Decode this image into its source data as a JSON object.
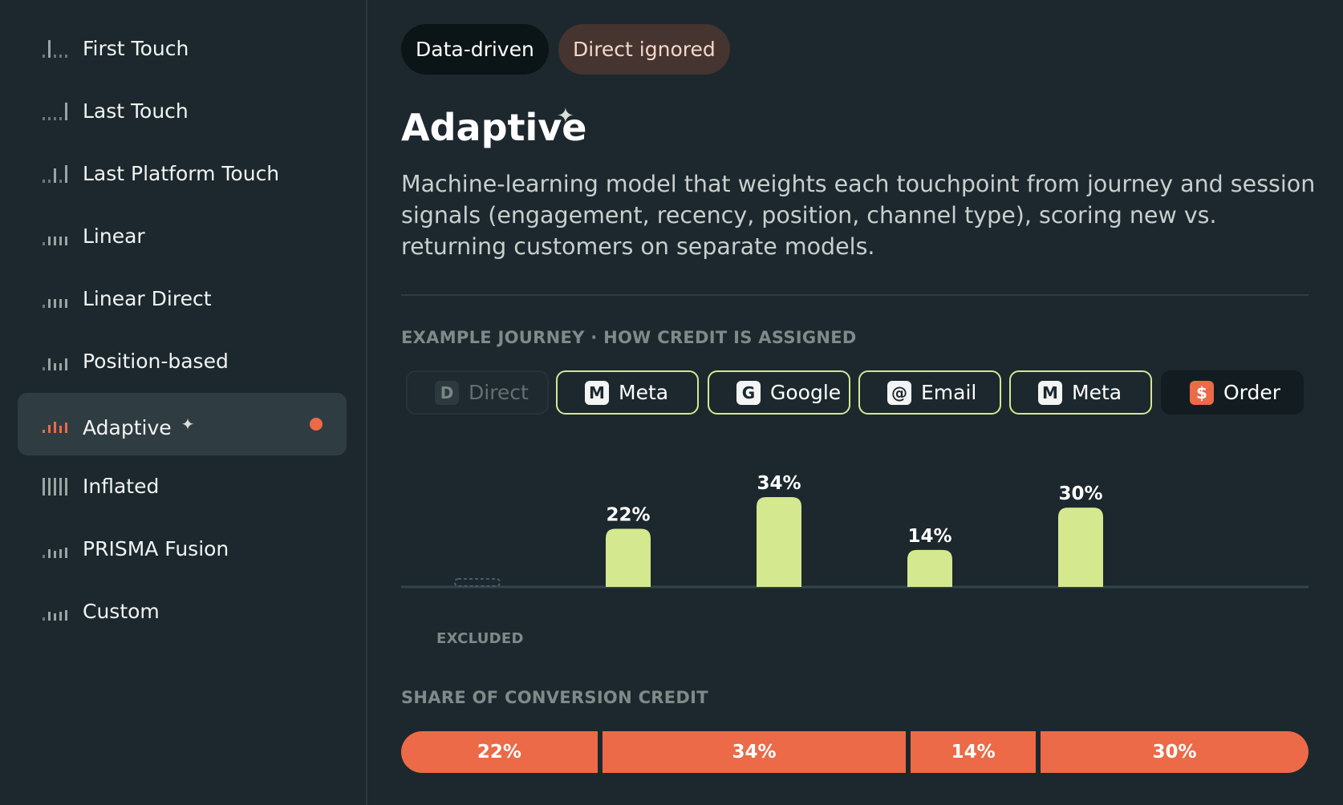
{
  "sidebar": {
    "items": [
      {
        "label": "First Touch",
        "icon": "first-touch-bars-icon"
      },
      {
        "label": "Last Touch",
        "icon": "last-touch-bars-icon"
      },
      {
        "label": "Last Platform Touch",
        "icon": "last-platform-touch-bars-icon"
      },
      {
        "label": "Linear",
        "icon": "linear-bars-icon"
      },
      {
        "label": "Linear Direct",
        "icon": "linear-direct-bars-icon"
      },
      {
        "label": "Position-based",
        "icon": "position-based-bars-icon"
      },
      {
        "label": "Adaptive",
        "icon": "adaptive-bars-icon",
        "active": true
      },
      {
        "label": "Inflated",
        "icon": "inflated-bars-icon"
      },
      {
        "label": "PRISMA Fusion",
        "icon": "prisma-fusion-bars-icon"
      },
      {
        "label": "Custom",
        "icon": "custom-bars-icon"
      }
    ]
  },
  "main": {
    "tags": [
      "Data-driven",
      "Direct ignored"
    ],
    "title": "Adaptive",
    "description": "Machine-learning model that weights each touchpoint from journey and session signals (engagement, recency, position, channel type), scoring new vs. returning customers on separate models.",
    "journey_label": "EXAMPLE JOURNEY · HOW CREDIT IS ASSIGNED",
    "touchpoints": [
      {
        "badge": "D",
        "label": "Direct",
        "kind": "direct"
      },
      {
        "badge": "M",
        "label": "Meta",
        "kind": "channel"
      },
      {
        "badge": "G",
        "label": "Google",
        "kind": "channel"
      },
      {
        "badge": "@",
        "label": "Email",
        "kind": "channel"
      },
      {
        "badge": "M",
        "label": "Meta",
        "kind": "channel"
      },
      {
        "badge": "$",
        "label": "Order",
        "kind": "order"
      }
    ],
    "excluded_label": "EXCLUDED",
    "share_label": "SHARE OF CONVERSION CREDIT",
    "share_segments": [
      "22%",
      "34%",
      "14%",
      "30%"
    ]
  },
  "chart_data": {
    "type": "bar",
    "categories": [
      "Direct",
      "Meta",
      "Google",
      "Email",
      "Meta"
    ],
    "values": [
      0,
      22,
      34,
      14,
      30
    ],
    "value_labels": [
      "",
      "22%",
      "34%",
      "14%",
      "30%"
    ],
    "ylim": [
      0,
      34
    ],
    "grid": false
  },
  "colors": {
    "background": "#1c282e",
    "accent": "#ec6a47",
    "bar": "#d4e88f",
    "active_item": "#2f3d43",
    "muted_text": "#7f8a89"
  }
}
